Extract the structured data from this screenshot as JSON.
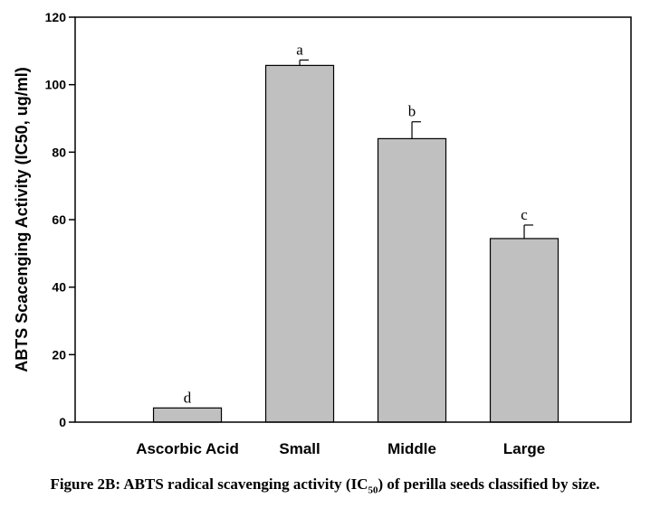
{
  "chart_data": {
    "type": "bar",
    "categories": [
      "Ascorbic Acid",
      "Small",
      "Middle",
      "Large"
    ],
    "values": [
      4.2,
      105.7,
      84.0,
      54.4
    ],
    "errors": [
      0,
      1.6,
      5.0,
      4.0
    ],
    "significance": [
      "d",
      "a",
      "b",
      "c"
    ],
    "ylabel": "ABTS Scacenging Activity (IC50, ug/ml)",
    "ylim": [
      0,
      120
    ],
    "yticks": [
      0,
      20,
      40,
      60,
      80,
      100,
      120
    ],
    "bar_color": "#c0c0c0",
    "grid": false
  },
  "caption": {
    "prefix": "Figure 2B: ABTS radical scavenging activity (IC",
    "subscript": "50",
    "suffix": ") of perilla seeds classified by size."
  }
}
